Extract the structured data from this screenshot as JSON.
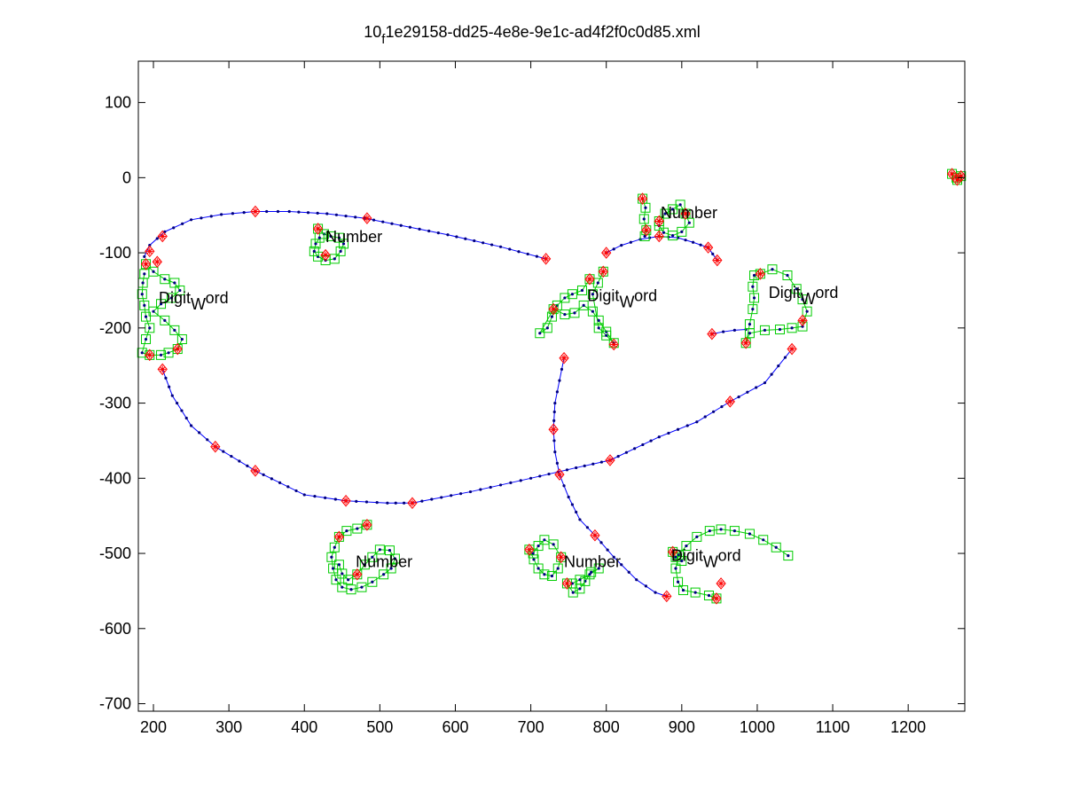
{
  "chart_data": {
    "type": "scatter",
    "title": {
      "main": "10",
      "sub": "f",
      "rest": "1e29158-dd25-4e8e-9e1c-ad4f2f0c0d85.xml"
    },
    "xlabel": "",
    "ylabel": "",
    "xlim": [
      180,
      1275
    ],
    "ylim": [
      -710,
      155
    ],
    "xticks": [
      200,
      300,
      400,
      500,
      600,
      700,
      800,
      900,
      1000,
      1100,
      1200
    ],
    "yticks": [
      100,
      0,
      -100,
      -200,
      -300,
      -400,
      -500,
      -600,
      -700
    ],
    "grid": false,
    "colors": {
      "trajectory": "#0000ff",
      "sample_point": "#000080",
      "symbol_box": "#00cc00",
      "keypoint": "#ff0000"
    },
    "annotations": [
      {
        "base": "Number",
        "sub": "",
        "rest": "",
        "x": 428,
        "y": -86
      },
      {
        "base": "Digit",
        "sub": "W",
        "rest": "ord",
        "x": 207,
        "y": -167
      },
      {
        "base": "Number",
        "sub": "",
        "rest": "",
        "x": 872,
        "y": -54
      },
      {
        "base": "Digit",
        "sub": "W",
        "rest": "ord",
        "x": 775,
        "y": -164
      },
      {
        "base": "Digit",
        "sub": "W",
        "rest": "ord",
        "x": 1015,
        "y": -160
      },
      {
        "base": "Number",
        "sub": "",
        "rest": "",
        "x": 468,
        "y": -518
      },
      {
        "base": "Number",
        "sub": "",
        "rest": "",
        "x": 744,
        "y": -518
      },
      {
        "base": "Digit",
        "sub": "W",
        "rest": "ord",
        "x": 886,
        "y": -510
      }
    ],
    "series": [
      {
        "kind": "trajectory",
        "points": [
          [
            720,
            -108
          ],
          [
            660,
            -92
          ],
          [
            590,
            -76
          ],
          [
            540,
            -66
          ],
          [
            480,
            -54
          ],
          [
            430,
            -48
          ],
          [
            380,
            -45
          ],
          [
            335,
            -45
          ],
          [
            290,
            -49
          ],
          [
            250,
            -56
          ],
          [
            215,
            -72
          ],
          [
            195,
            -90
          ],
          [
            188,
            -105
          ]
        ]
      },
      {
        "kind": "trajectory",
        "points": [
          [
            212,
            -255
          ],
          [
            225,
            -290
          ],
          [
            250,
            -330
          ],
          [
            282,
            -358
          ],
          [
            335,
            -390
          ],
          [
            400,
            -422
          ],
          [
            455,
            -430
          ],
          [
            510,
            -433
          ],
          [
            543,
            -433
          ],
          [
            620,
            -418
          ],
          [
            700,
            -400
          ],
          [
            760,
            -386
          ],
          [
            805,
            -376
          ],
          [
            870,
            -345
          ],
          [
            920,
            -325
          ],
          [
            964,
            -298
          ],
          [
            1010,
            -273
          ],
          [
            1046,
            -228
          ]
        ]
      },
      {
        "kind": "trajectory",
        "points": [
          [
            744,
            -240
          ],
          [
            738,
            -270
          ],
          [
            732,
            -300
          ],
          [
            730,
            -335
          ],
          [
            732,
            -365
          ],
          [
            738,
            -395
          ],
          [
            750,
            -425
          ],
          [
            765,
            -455
          ],
          [
            785,
            -476
          ],
          [
            810,
            -505
          ],
          [
            840,
            -535
          ],
          [
            865,
            -552
          ],
          [
            880,
            -557
          ]
        ]
      },
      {
        "kind": "trajectory",
        "points": [
          [
            800,
            -100
          ],
          [
            820,
            -90
          ],
          [
            845,
            -82
          ],
          [
            870,
            -78
          ],
          [
            895,
            -80
          ],
          [
            915,
            -86
          ],
          [
            935,
            -93
          ],
          [
            947,
            -110
          ]
        ]
      },
      {
        "kind": "trajectory",
        "points": [
          [
            940,
            -208
          ],
          [
            955,
            -205
          ],
          [
            970,
            -203
          ],
          [
            985,
            -202
          ]
        ]
      },
      {
        "kind": "stroke",
        "points": [
          [
            190,
            -115
          ],
          [
            200,
            -125
          ],
          [
            215,
            -135
          ],
          [
            228,
            -140
          ],
          [
            235,
            -150
          ],
          [
            224,
            -160
          ],
          [
            210,
            -168
          ],
          [
            200,
            -178
          ],
          [
            215,
            -190
          ],
          [
            228,
            -203
          ],
          [
            238,
            -215
          ],
          [
            232,
            -228
          ],
          [
            220,
            -233
          ],
          [
            210,
            -236
          ],
          [
            195,
            -236
          ],
          [
            185,
            -233
          ],
          [
            190,
            -215
          ],
          [
            195,
            -200
          ],
          [
            190,
            -185
          ],
          [
            188,
            -170
          ],
          [
            185,
            -155
          ],
          [
            186,
            -140
          ],
          [
            188,
            -128
          ]
        ]
      },
      {
        "kind": "stroke",
        "points": [
          [
            418,
            -68
          ],
          [
            426,
            -75
          ],
          [
            435,
            -78
          ],
          [
            446,
            -80
          ],
          [
            452,
            -88
          ],
          [
            448,
            -98
          ],
          [
            440,
            -108
          ],
          [
            428,
            -110
          ],
          [
            418,
            -105
          ],
          [
            413,
            -98
          ],
          [
            415,
            -88
          ],
          [
            420,
            -80
          ]
        ]
      },
      {
        "kind": "stroke",
        "points": [
          [
            848,
            -28
          ],
          [
            852,
            -40
          ],
          [
            850,
            -55
          ],
          [
            853,
            -70
          ],
          [
            851,
            -78
          ]
        ]
      },
      {
        "kind": "stroke",
        "points": [
          [
            870,
            -58
          ],
          [
            878,
            -48
          ],
          [
            888,
            -42
          ],
          [
            898,
            -36
          ],
          [
            905,
            -48
          ],
          [
            910,
            -60
          ],
          [
            900,
            -72
          ],
          [
            888,
            -77
          ],
          [
            876,
            -73
          ],
          [
            870,
            -64
          ]
        ]
      },
      {
        "kind": "stroke",
        "points": [
          [
            778,
            -135
          ],
          [
            768,
            -150
          ],
          [
            755,
            -155
          ],
          [
            745,
            -160
          ],
          [
            735,
            -170
          ],
          [
            728,
            -185
          ],
          [
            722,
            -200
          ],
          [
            712,
            -207
          ],
          [
            730,
            -175
          ],
          [
            745,
            -182
          ],
          [
            758,
            -180
          ],
          [
            770,
            -170
          ],
          [
            782,
            -178
          ],
          [
            790,
            -190
          ],
          [
            800,
            -205
          ],
          [
            810,
            -220
          ],
          [
            800,
            -210
          ],
          [
            790,
            -200
          ],
          [
            782,
            -155
          ],
          [
            789,
            -140
          ],
          [
            796,
            -125
          ]
        ]
      },
      {
        "kind": "stroke",
        "points": [
          [
            1004,
            -128
          ],
          [
            1020,
            -122
          ],
          [
            1040,
            -130
          ],
          [
            1052,
            -148
          ],
          [
            1060,
            -162
          ],
          [
            1066,
            -178
          ],
          [
            1060,
            -198
          ],
          [
            1046,
            -200
          ],
          [
            1030,
            -202
          ],
          [
            1010,
            -203
          ],
          [
            990,
            -207
          ],
          [
            985,
            -220
          ],
          [
            990,
            -195
          ],
          [
            994,
            -175
          ],
          [
            996,
            -160
          ],
          [
            994,
            -145
          ],
          [
            996,
            -130
          ]
        ]
      },
      {
        "kind": "stroke",
        "points": [
          [
            483,
            -462
          ],
          [
            470,
            -467
          ],
          [
            456,
            -470
          ],
          [
            446,
            -478
          ],
          [
            440,
            -492
          ],
          [
            436,
            -505
          ],
          [
            438,
            -520
          ],
          [
            442,
            -535
          ],
          [
            450,
            -545
          ],
          [
            462,
            -548
          ],
          [
            476,
            -545
          ],
          [
            490,
            -538
          ],
          [
            505,
            -528
          ],
          [
            515,
            -520
          ],
          [
            520,
            -507
          ],
          [
            513,
            -496
          ],
          [
            500,
            -495
          ],
          [
            490,
            -505
          ],
          [
            480,
            -515
          ],
          [
            470,
            -528
          ],
          [
            458,
            -535
          ],
          [
            450,
            -527
          ],
          [
            446,
            -515
          ]
        ]
      },
      {
        "kind": "stroke",
        "points": [
          [
            698,
            -495
          ],
          [
            704,
            -508
          ],
          [
            710,
            -520
          ],
          [
            718,
            -528
          ],
          [
            728,
            -530
          ],
          [
            736,
            -520
          ],
          [
            740,
            -505
          ],
          [
            730,
            -488
          ],
          [
            718,
            -482
          ],
          [
            710,
            -490
          ],
          [
            703,
            -500
          ]
        ]
      },
      {
        "kind": "stroke",
        "points": [
          [
            748,
            -540
          ],
          [
            756,
            -552
          ],
          [
            765,
            -547
          ],
          [
            772,
            -537
          ],
          [
            780,
            -525
          ],
          [
            790,
            -520
          ],
          [
            778,
            -528
          ],
          [
            765,
            -535
          ],
          [
            755,
            -540
          ]
        ]
      },
      {
        "kind": "stroke",
        "points": [
          [
            1041,
            -503
          ],
          [
            1025,
            -492
          ],
          [
            1008,
            -482
          ],
          [
            990,
            -474
          ],
          [
            970,
            -470
          ],
          [
            952,
            -468
          ],
          [
            937,
            -470
          ],
          [
            920,
            -478
          ],
          [
            906,
            -490
          ],
          [
            896,
            -502
          ],
          [
            892,
            -520
          ],
          [
            895,
            -538
          ],
          [
            902,
            -549
          ],
          [
            918,
            -552
          ],
          [
            936,
            -556
          ],
          [
            946,
            -560
          ]
        ]
      },
      {
        "kind": "stroke",
        "points": [
          [
            888,
            -498
          ],
          [
            892,
            -505
          ],
          [
            900,
            -510
          ]
        ]
      },
      {
        "kind": "stroke",
        "points": [
          [
            1258,
            5
          ],
          [
            1264,
            0
          ],
          [
            1270,
            2
          ],
          [
            1265,
            -3
          ]
        ]
      }
    ],
    "keypoints": [
      [
        720,
        -108
      ],
      [
        483,
        -54
      ],
      [
        335,
        -45
      ],
      [
        212,
        -78
      ],
      [
        195,
        -98
      ],
      [
        205,
        -112
      ],
      [
        212,
        -255
      ],
      [
        282,
        -358
      ],
      [
        335,
        -390
      ],
      [
        455,
        -430
      ],
      [
        543,
        -433
      ],
      [
        805,
        -376
      ],
      [
        964,
        -298
      ],
      [
        1046,
        -228
      ],
      [
        744,
        -240
      ],
      [
        730,
        -335
      ],
      [
        738,
        -395
      ],
      [
        785,
        -476
      ],
      [
        880,
        -557
      ],
      [
        800,
        -100
      ],
      [
        947,
        -110
      ],
      [
        935,
        -93
      ],
      [
        870,
        -78
      ],
      [
        940,
        -208
      ],
      [
        1258,
        5
      ],
      [
        1270,
        2
      ],
      [
        1265,
        -3
      ],
      [
        418,
        -68
      ],
      [
        428,
        -103
      ],
      [
        848,
        -28
      ],
      [
        853,
        -70
      ],
      [
        870,
        -58
      ],
      [
        905,
        -48
      ],
      [
        778,
        -135
      ],
      [
        810,
        -222
      ],
      [
        730,
        -175
      ],
      [
        796,
        -125
      ],
      [
        1004,
        -128
      ],
      [
        1060,
        -190
      ],
      [
        985,
        -220
      ],
      [
        483,
        -462
      ],
      [
        446,
        -478
      ],
      [
        470,
        -528
      ],
      [
        698,
        -495
      ],
      [
        740,
        -505
      ],
      [
        748,
        -540
      ],
      [
        952,
        -540
      ],
      [
        888,
        -498
      ],
      [
        946,
        -560
      ],
      [
        190,
        -115
      ],
      [
        232,
        -228
      ],
      [
        195,
        -236
      ]
    ]
  }
}
